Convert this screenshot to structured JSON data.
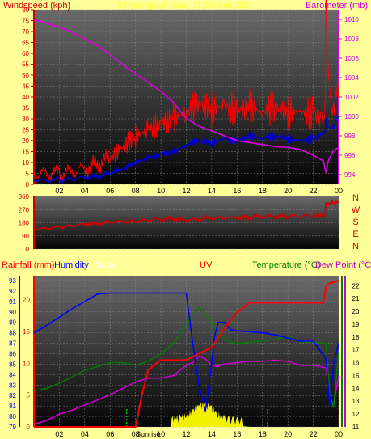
{
  "colors": {
    "background": "#ffff99",
    "wind": "#cc0000",
    "gust": "#ff0000",
    "speed": "#0000cc",
    "barometer": "#dd00dd",
    "direction": "#cc0000",
    "humidity": "#0000ff",
    "rainfall": "#ff0000",
    "temperature": "#008000",
    "dewpoint": "#cc00cc",
    "uv": "#ffff00",
    "solar": "#00ff00",
    "sunrise": "#00cc00"
  },
  "header": {
    "title": "24 hour graph data - 11 October 2024"
  },
  "chart_data": [
    {
      "type": "line",
      "name": "wind",
      "left_label": "Windspeed (kph)",
      "right_label": "Barometer (mb)",
      "ylim": [
        0,
        80
      ],
      "y2lim": [
        993,
        1011
      ],
      "yticks": [
        "0",
        "5",
        "10",
        "15",
        "20",
        "25",
        "30",
        "35",
        "40",
        "45",
        "50",
        "55",
        "60",
        "65",
        "70",
        "75",
        "80"
      ],
      "y2ticks": [
        "994",
        "996",
        "998",
        "1000",
        "1002",
        "1004",
        "1006",
        "1008",
        "1010"
      ],
      "xticks": [
        "02",
        "04",
        "06",
        "08",
        "10",
        "12",
        "14",
        "16",
        "18",
        "20",
        "22",
        "00"
      ],
      "grid": true,
      "series": [
        {
          "key": "gust",
          "x": [
            0,
            2,
            4,
            6,
            7,
            8,
            9,
            10,
            11,
            12,
            13,
            14,
            15,
            16,
            17,
            18,
            19,
            20,
            21,
            22,
            22.9,
            23,
            23.2,
            23.5,
            24
          ],
          "values": [
            5,
            5,
            7,
            12,
            17,
            22,
            25,
            28,
            30,
            33,
            37,
            35,
            36,
            34,
            35,
            33,
            35,
            34,
            33,
            33,
            30,
            80,
            45,
            38,
            40
          ]
        },
        {
          "key": "speed",
          "x": [
            0,
            2,
            4,
            6,
            7,
            8,
            9,
            10,
            11,
            12,
            13,
            14,
            15,
            16,
            17,
            18,
            19,
            20,
            21,
            22,
            22.9,
            23,
            23.2,
            23.5,
            24
          ],
          "values": [
            2,
            2,
            3,
            5,
            7,
            10,
            12,
            14,
            15,
            18,
            20,
            19,
            21,
            20,
            22,
            21,
            22,
            21,
            20,
            21,
            24,
            28,
            25,
            27,
            30
          ]
        },
        {
          "key": "barometer",
          "axis": "y2",
          "x": [
            0,
            1,
            2,
            3,
            4,
            5,
            6,
            7,
            8,
            9,
            10,
            11,
            12,
            13,
            14,
            15,
            16,
            17,
            18,
            19,
            20,
            21,
            22,
            22.8,
            23,
            23.2,
            23.6,
            24
          ],
          "values": [
            1010,
            1009.6,
            1009.2,
            1008.7,
            1008,
            1007.3,
            1006.4,
            1005.3,
            1004.4,
            1003.5,
            1002.6,
            1001.4,
            999.8,
            999,
            998.5,
            998,
            997.5,
            997.3,
            997.1,
            996.9,
            996.8,
            996.6,
            996,
            995.4,
            994.2,
            995.5,
            996.5,
            996.8
          ]
        }
      ]
    },
    {
      "type": "line",
      "name": "wind_direction",
      "ylim": [
        0,
        360
      ],
      "yticks": [
        "0",
        "90",
        "180",
        "270",
        "360"
      ],
      "compass": [
        "N",
        "W",
        "S",
        "E",
        "N"
      ],
      "series": [
        {
          "key": "direction",
          "x": [
            0,
            2,
            4,
            6,
            8,
            10,
            12,
            14,
            16,
            18,
            20,
            22,
            22.9,
            23,
            23.3,
            24
          ],
          "values": [
            135,
            150,
            170,
            185,
            190,
            205,
            200,
            210,
            215,
            220,
            225,
            228,
            230,
            300,
            315,
            318
          ]
        }
      ]
    },
    {
      "type": "line",
      "name": "temperature_humidity_rain",
      "legend": {
        "rainfall": "Rainfall (mm)",
        "humidity": "Humidity",
        "solar": "Solar",
        "uv": "UV",
        "temperature": "Temperature (°C)",
        "dewpoint": "Dew Point (°C"
      },
      "rain_ticks": [
        "0",
        "5",
        "10",
        "15",
        "20"
      ],
      "rain_lim": [
        0,
        23
      ],
      "humidity_ticks": [
        "79",
        "80",
        "81",
        "82",
        "83",
        "84",
        "85",
        "86",
        "87",
        "88",
        "89",
        "90",
        "91",
        "92",
        "93"
      ],
      "humidity_lim": [
        79,
        93
      ],
      "temp_ticks": [
        "11",
        "12",
        "13",
        "14",
        "15",
        "16",
        "17",
        "18",
        "19",
        "20",
        "21",
        "22"
      ],
      "temp_lim": [
        11,
        22.4
      ],
      "xticks": [
        "02",
        "04",
        "06",
        "08",
        "10",
        "12",
        "14",
        "16",
        "18",
        "20",
        "22",
        "00"
      ],
      "sunrise_label": "Sunrise",
      "series": [
        {
          "key": "humidity",
          "axis": "humidity",
          "x": [
            0,
            1,
            2,
            3,
            4,
            5,
            6,
            7,
            8,
            9,
            10,
            11,
            12,
            12.5,
            13,
            13.5,
            14,
            14.2,
            14.5,
            15,
            15.5,
            16,
            17,
            18,
            19,
            20,
            21,
            22,
            23,
            23.3,
            23.6,
            24
          ],
          "values": [
            88,
            88.7,
            89.5,
            90.3,
            91,
            91.7,
            91.8,
            91.8,
            91.8,
            91.8,
            91.8,
            91.8,
            91.8,
            87,
            83,
            80.5,
            85,
            87.5,
            89,
            89,
            88.3,
            88.2,
            88.1,
            88,
            87.8,
            87.5,
            87.2,
            87.2,
            85.5,
            81,
            85,
            87
          ]
        },
        {
          "key": "rainfall",
          "axis": "rain",
          "x": [
            0,
            4,
            6,
            7,
            8,
            8.5,
            9,
            10,
            12,
            14,
            15,
            16,
            17,
            18,
            19,
            20,
            21,
            22,
            22.8,
            23,
            23.2,
            24
          ],
          "values": [
            0,
            0,
            0,
            0,
            0,
            5,
            9,
            10.5,
            10.5,
            12.5,
            15.5,
            18,
            19.5,
            19.5,
            19.5,
            19.5,
            19.5,
            19.5,
            19.5,
            22,
            22.5,
            23
          ]
        },
        {
          "key": "temperature",
          "axis": "temp",
          "x": [
            0,
            1,
            2,
            3,
            4,
            5,
            6,
            7,
            8,
            9,
            10,
            11,
            12,
            12.5,
            13,
            13.5,
            14,
            14.5,
            15,
            15.5,
            16,
            17,
            18,
            19,
            20,
            21,
            22,
            23,
            23.3,
            23.6,
            24
          ],
          "values": [
            13.8,
            14,
            14.4,
            14.9,
            15.4,
            15.7,
            16,
            16,
            15.8,
            16.1,
            16.7,
            17.5,
            19,
            19.8,
            20.3,
            19.8,
            19,
            18.3,
            17.8,
            17.6,
            17.5,
            17.6,
            17.7,
            17.8,
            18.1,
            17.6,
            17.6,
            17.5,
            13.5,
            12.5,
            16.8
          ]
        },
        {
          "key": "dewpoint",
          "axis": "temp",
          "x": [
            0,
            1,
            2,
            3,
            4,
            5,
            6,
            7,
            8,
            9,
            10,
            11,
            12,
            12.5,
            13,
            13.5,
            14,
            14.5,
            15,
            16,
            17,
            18,
            19,
            20,
            21,
            22,
            23,
            23.3,
            23.6,
            24
          ],
          "values": [
            11.2,
            11.5,
            12,
            12.3,
            12.7,
            13.1,
            13.5,
            14,
            14.5,
            14.8,
            14.8,
            15,
            15.8,
            16,
            16.5,
            16.3,
            15.8,
            15.7,
            15.9,
            16,
            16.1,
            16.1,
            16.2,
            16.1,
            15.8,
            15.8,
            15.6,
            13,
            12.8,
            15
          ]
        },
        {
          "key": "solar",
          "axis": "temp",
          "x": [
            0,
            10.7,
            11,
            11.5,
            12,
            12.5,
            13,
            13.5,
            14,
            14.5,
            15,
            16,
            17,
            18,
            24
          ],
          "values": [
            11,
            11,
            11.2,
            11.3,
            11.4,
            11.8,
            12.2,
            12.4,
            12,
            11.5,
            11.2,
            11.1,
            11,
            11,
            11
          ]
        }
      ]
    }
  ]
}
